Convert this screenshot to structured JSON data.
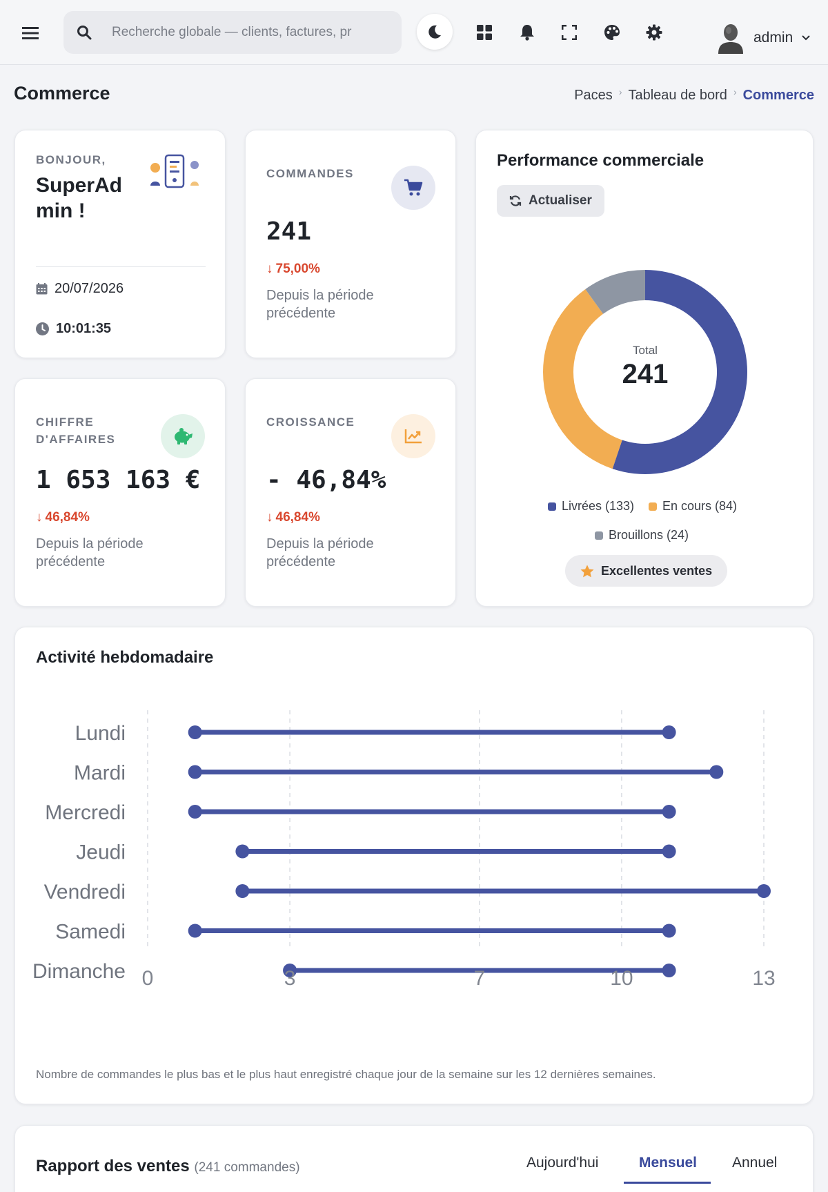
{
  "header": {
    "search_placeholder": "Recherche globale — clients, factures, pr",
    "user_name": "admin"
  },
  "page": {
    "title": "Commerce",
    "breadcrumb": [
      "Paces",
      "Tableau de bord",
      "Commerce"
    ]
  },
  "welcome": {
    "greeting": "BONJOUR,",
    "name": "SuperAd min !",
    "date": "20/07/2026",
    "time": "10:01:35"
  },
  "stats": {
    "orders": {
      "label": "COMMANDES",
      "value": "241",
      "change": "75,00%",
      "desc": "Depuis la période précédente"
    },
    "revenue": {
      "label": "CHIFFRE D'AFFAIRES",
      "value": "1 653 163 €",
      "change": "46,84%",
      "desc": "Depuis la période précédente"
    },
    "growth": {
      "label": "CROISSANCE",
      "value": "- 46,84%",
      "change": "46,84%",
      "desc": "Depuis la période précédente"
    }
  },
  "performance": {
    "title": "Performance commerciale",
    "refresh_label": "Actualiser",
    "total_label": "Total",
    "total_value": "241",
    "badge": "Excellentes ventes",
    "legend": [
      {
        "label": "Livrées (133)",
        "color": "#4654a0"
      },
      {
        "label": "En cours (84)",
        "color": "#f2ad52"
      },
      {
        "label": "Brouillons (24)",
        "color": "#8e96a3"
      }
    ]
  },
  "activity": {
    "title": "Activité hebdomadaire",
    "note": "Nombre de commandes le plus bas et le plus haut enregistré chaque jour de la semaine sur les 12 dernières semaines."
  },
  "report": {
    "title": "Rapport des ventes",
    "count": "(241 commandes)",
    "tabs": [
      "Aujourd'hui",
      "Mensuel",
      "Annuel"
    ]
  },
  "chart_data": [
    {
      "type": "pie",
      "title": "Performance commerciale",
      "categories": [
        "Livrées",
        "En cours",
        "Brouillons"
      ],
      "values": [
        133,
        84,
        24
      ],
      "colors": [
        "#4654a0",
        "#f2ad52",
        "#8e96a3"
      ],
      "legend": "bottom"
    },
    {
      "type": "dumbbell",
      "title": "Activité hebdomadaire",
      "categories": [
        "Lundi",
        "Mardi",
        "Mercredi",
        "Jeudi",
        "Vendredi",
        "Samedi",
        "Dimanche"
      ],
      "series": [
        {
          "name": "min",
          "values": [
            1,
            1,
            1,
            2,
            2,
            1,
            3
          ]
        },
        {
          "name": "max",
          "values": [
            11,
            12,
            11,
            11,
            13,
            11,
            11
          ]
        }
      ],
      "xticks": [
        "0",
        "3",
        "7",
        "10",
        "13"
      ],
      "xlim": [
        0,
        13
      ],
      "grid": true,
      "color": "#4654a0"
    }
  ]
}
